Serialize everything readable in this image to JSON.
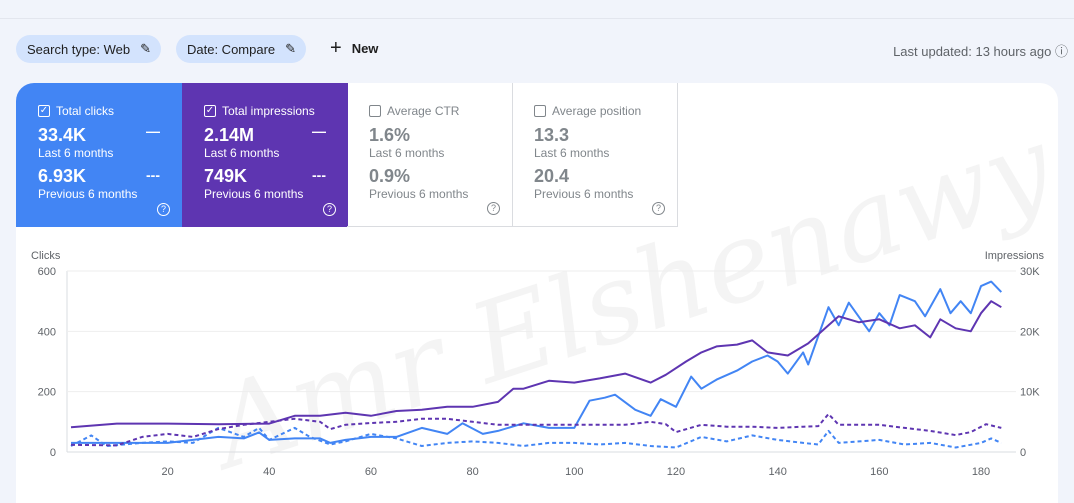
{
  "filters": {
    "search_type": "Search type: Web",
    "date": "Date: Compare",
    "new_label": "New"
  },
  "last_updated": "Last updated: 13 hours ago",
  "metrics": [
    {
      "label": "Total clicks",
      "checked": true,
      "current": "33.4K",
      "current_period": "Last 6 months",
      "previous": "6.93K",
      "previous_period": "Previous 6 months",
      "color": "#4285f4"
    },
    {
      "label": "Total impressions",
      "checked": true,
      "current": "2.14M",
      "current_period": "Last 6 months",
      "previous": "749K",
      "previous_period": "Previous 6 months",
      "color": "#5e35b1"
    },
    {
      "label": "Average CTR",
      "checked": false,
      "current": "1.6%",
      "current_period": "Last 6 months",
      "previous": "0.9%",
      "previous_period": "Previous 6 months"
    },
    {
      "label": "Average position",
      "checked": false,
      "current": "13.3",
      "current_period": "Last 6 months",
      "previous": "20.4",
      "previous_period": "Previous 6 months"
    }
  ],
  "watermark": "Amr Elshenawy",
  "chart_data": {
    "type": "line",
    "ylabel_left": "Clicks",
    "ylabel_right": "Impressions",
    "ylim_left": [
      0,
      600
    ],
    "yticks_left": [
      "0",
      "200",
      "400",
      "600"
    ],
    "ylim_right": [
      0,
      30000
    ],
    "yticks_right": [
      "0",
      "10K",
      "20K",
      "30K"
    ],
    "xlim": [
      1,
      184
    ],
    "xticks": [
      20,
      40,
      60,
      80,
      100,
      120,
      140,
      160,
      180
    ],
    "grid": true,
    "series": [
      {
        "metric": "clicks",
        "period": "current",
        "style": "solid",
        "color": "#4285f4",
        "axis": "left",
        "x": [
          1,
          10,
          20,
          30,
          35,
          38,
          40,
          45,
          50,
          52,
          55,
          60,
          65,
          70,
          75,
          78,
          82,
          85,
          90,
          95,
          100,
          103,
          106,
          108,
          112,
          115,
          117,
          120,
          123,
          125,
          128,
          132,
          135,
          138,
          140,
          142,
          145,
          146,
          150,
          152,
          154,
          158,
          160,
          162,
          164,
          167,
          169,
          172,
          174,
          176,
          178,
          180,
          182,
          184
        ],
        "y": [
          30,
          30,
          30,
          50,
          45,
          65,
          40,
          45,
          45,
          30,
          40,
          50,
          50,
          80,
          60,
          95,
          60,
          70,
          95,
          80,
          80,
          170,
          180,
          190,
          140,
          120,
          175,
          150,
          250,
          210,
          240,
          270,
          300,
          320,
          300,
          260,
          330,
          290,
          480,
          420,
          495,
          400,
          460,
          420,
          520,
          500,
          450,
          540,
          460,
          500,
          460,
          550,
          565,
          530
        ]
      },
      {
        "metric": "clicks",
        "period": "previous",
        "style": "dashed",
        "color": "#4285f4",
        "axis": "left",
        "x": [
          1,
          5,
          8,
          15,
          20,
          25,
          30,
          35,
          38,
          40,
          45,
          48,
          52,
          55,
          60,
          65,
          70,
          75,
          80,
          85,
          90,
          95,
          100,
          105,
          110,
          115,
          120,
          125,
          130,
          135,
          140,
          145,
          148,
          150,
          152,
          156,
          160,
          165,
          170,
          175,
          180,
          182,
          184
        ],
        "y": [
          20,
          55,
          20,
          30,
          35,
          30,
          80,
          50,
          80,
          40,
          80,
          50,
          25,
          35,
          60,
          45,
          20,
          30,
          35,
          30,
          20,
          30,
          30,
          25,
          30,
          20,
          15,
          50,
          35,
          55,
          40,
          30,
          25,
          70,
          30,
          35,
          40,
          25,
          30,
          15,
          30,
          45,
          30
        ]
      },
      {
        "metric": "impressions",
        "period": "current",
        "style": "solid",
        "color": "#5e35b1",
        "axis": "right",
        "x": [
          1,
          10,
          20,
          30,
          40,
          45,
          50,
          55,
          60,
          65,
          70,
          75,
          80,
          85,
          88,
          90,
          95,
          100,
          105,
          110,
          115,
          118,
          122,
          125,
          128,
          132,
          135,
          138,
          142,
          146,
          150,
          152,
          156,
          160,
          164,
          167,
          170,
          172,
          175,
          178,
          180,
          182,
          184
        ],
        "y": [
          4100,
          4700,
          4700,
          4600,
          4700,
          6000,
          6000,
          6500,
          6000,
          6800,
          7000,
          7500,
          7500,
          8300,
          10500,
          10500,
          11800,
          11500,
          12200,
          13000,
          11500,
          12800,
          15000,
          16500,
          17500,
          17800,
          18500,
          16500,
          16000,
          18000,
          21000,
          22500,
          21500,
          22000,
          20500,
          21000,
          19000,
          22000,
          20500,
          20000,
          23000,
          25000,
          24000
        ]
      },
      {
        "metric": "impressions",
        "period": "previous",
        "style": "dashed",
        "color": "#5e35b1",
        "axis": "right",
        "x": [
          1,
          10,
          15,
          20,
          25,
          30,
          35,
          40,
          45,
          50,
          52,
          55,
          60,
          65,
          70,
          75,
          80,
          85,
          90,
          95,
          100,
          105,
          110,
          115,
          118,
          120,
          125,
          130,
          135,
          140,
          145,
          148,
          150,
          152,
          156,
          160,
          165,
          170,
          175,
          178,
          181,
          184
        ],
        "y": [
          1200,
          1100,
          2500,
          3000,
          2500,
          3800,
          4500,
          5000,
          5500,
          5000,
          3800,
          4500,
          4800,
          5000,
          5500,
          5500,
          5000,
          4500,
          4500,
          4500,
          4500,
          4500,
          4500,
          5000,
          4600,
          3300,
          4500,
          4200,
          4200,
          4000,
          4200,
          4300,
          6300,
          4500,
          4500,
          4500,
          4000,
          3500,
          2800,
          3300,
          4600,
          4000
        ]
      }
    ]
  }
}
